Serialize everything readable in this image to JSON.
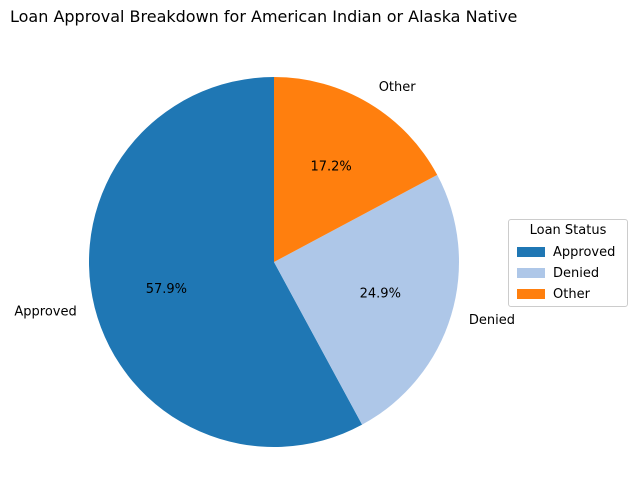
{
  "chart_data": {
    "type": "pie",
    "title": "Loan Approval Breakdown for American Indian or Alaska Native",
    "slices": [
      {
        "label": "Approved",
        "value": 57.9,
        "pct_label": "57.9%",
        "color": "#1f77b4"
      },
      {
        "label": "Denied",
        "value": 24.9,
        "pct_label": "24.9%",
        "color": "#aec7e8"
      },
      {
        "label": "Other",
        "value": 17.2,
        "pct_label": "17.2%",
        "color": "#ff7f0e"
      }
    ],
    "start_angle_deg": 90,
    "direction": "counterclockwise",
    "legend": {
      "title": "Loan Status",
      "placement": "center-right",
      "entries": [
        "Approved",
        "Denied",
        "Other"
      ]
    }
  }
}
